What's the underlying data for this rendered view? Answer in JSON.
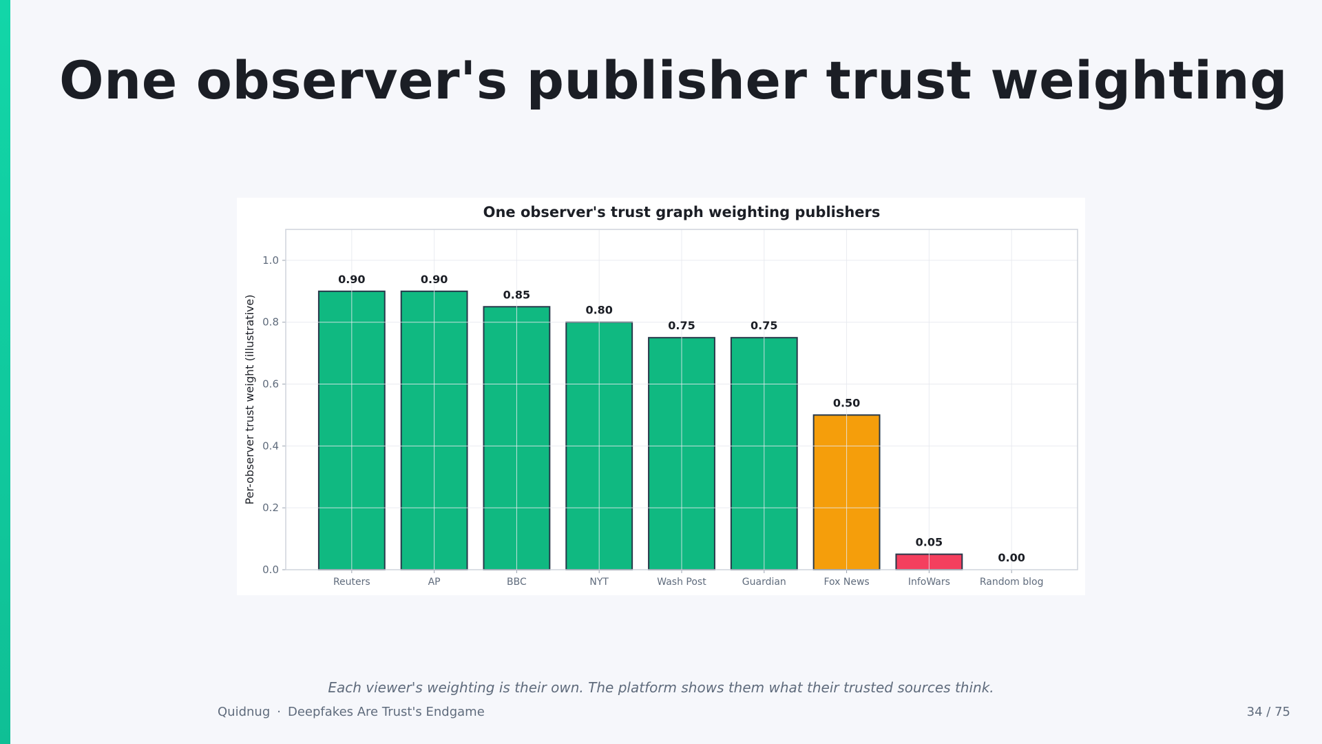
{
  "slide": {
    "title": "One observer's publisher trust weighting",
    "caption": "Each viewer's weighting is their own. The platform shows them what their trusted sources think.",
    "footer": {
      "brand": "Quidnug",
      "separator": "·",
      "deck": "Deepfakes Are Trust's Endgame",
      "page": "34 / 75"
    },
    "accent_color": "#12d6a8"
  },
  "chart_data": {
    "type": "bar",
    "title": "One observer's trust graph weighting publishers",
    "xlabel": "",
    "ylabel": "Per-observer trust weight (illustrative)",
    "ylim": [
      0,
      1.1
    ],
    "yticks": [
      0.0,
      0.2,
      0.4,
      0.6,
      0.8,
      1.0
    ],
    "grid": true,
    "categories": [
      "Reuters",
      "AP",
      "BBC",
      "NYT",
      "Wash Post",
      "Guardian",
      "Fox News",
      "InfoWars",
      "Random blog"
    ],
    "values": [
      0.9,
      0.9,
      0.85,
      0.8,
      0.75,
      0.75,
      0.5,
      0.05,
      0.0
    ],
    "value_labels": [
      "0.90",
      "0.90",
      "0.85",
      "0.80",
      "0.75",
      "0.75",
      "0.50",
      "0.05",
      "0.00"
    ],
    "colors": [
      "#10b981",
      "#10b981",
      "#10b981",
      "#10b981",
      "#10b981",
      "#10b981",
      "#f59e0b",
      "#f43f5e",
      "#f43f5e"
    ]
  }
}
